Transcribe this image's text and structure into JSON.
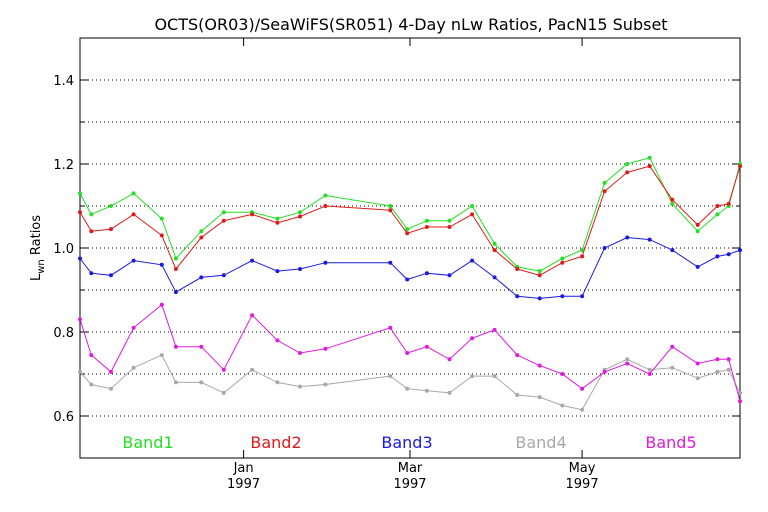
{
  "chart_data": {
    "type": "line",
    "title": "OCTS(OR03)/SeaWiFS(SR051) 4-Day nLw Ratios, PacN15 Subset",
    "ylabel_main": "L",
    "ylabel_sub": "wn",
    "ylabel_rest": " Ratios",
    "ylim": [
      0.5,
      1.5
    ],
    "yticks": [
      "0.6",
      "0.8",
      "1.0",
      "1.2",
      "1.4"
    ],
    "ytick_values": [
      0.6,
      0.8,
      1.0,
      1.2,
      1.4
    ],
    "grid": true,
    "x_range": [
      "1996-11-04",
      "1997-06-26"
    ],
    "xticks": [
      {
        "date": "1997-01-01",
        "month": "Jan",
        "year": "1997"
      },
      {
        "date": "1997-03-01",
        "month": "Mar",
        "year": "1997"
      },
      {
        "date": "1997-05-01",
        "month": "May",
        "year": "1997"
      }
    ],
    "series": [
      {
        "name": "Band1",
        "color": "#22e022",
        "points": [
          [
            "1996-11-04",
            1.13
          ],
          [
            "1996-11-08",
            1.08
          ],
          [
            "1996-11-15",
            1.1
          ],
          [
            "1996-11-23",
            1.13
          ],
          [
            "1996-12-03",
            1.07
          ],
          [
            "1996-12-08",
            0.975
          ],
          [
            "1996-12-17",
            1.04
          ],
          [
            "1996-12-25",
            1.085
          ],
          [
            "1997-01-04",
            1.085
          ],
          [
            "1997-01-13",
            1.07
          ],
          [
            "1997-01-21",
            1.085
          ],
          [
            "1997-01-30",
            1.125
          ],
          [
            "1997-02-22",
            1.1
          ],
          [
            "1997-02-28",
            1.045
          ],
          [
            "1997-03-07",
            1.065
          ],
          [
            "1997-03-15",
            1.065
          ],
          [
            "1997-03-23",
            1.1
          ],
          [
            "1997-03-31",
            1.01
          ],
          [
            "1997-04-08",
            0.955
          ],
          [
            "1997-04-16",
            0.945
          ],
          [
            "1997-04-24",
            0.975
          ],
          [
            "1997-05-01",
            0.995
          ],
          [
            "1997-05-09",
            1.155
          ],
          [
            "1997-05-17",
            1.2
          ],
          [
            "1997-05-25",
            1.215
          ],
          [
            "1997-06-02",
            1.105
          ],
          [
            "1997-06-11",
            1.04
          ],
          [
            "1997-06-18",
            1.08
          ],
          [
            "1997-06-22",
            1.1
          ],
          [
            "1997-06-30",
            1.2
          ]
        ]
      },
      {
        "name": "Band2",
        "color": "#e01a1a",
        "points": [
          [
            "1996-11-04",
            1.085
          ],
          [
            "1996-11-08",
            1.04
          ],
          [
            "1996-11-15",
            1.045
          ],
          [
            "1996-11-23",
            1.08
          ],
          [
            "1996-12-03",
            1.03
          ],
          [
            "1996-12-08",
            0.95
          ],
          [
            "1996-12-17",
            1.025
          ],
          [
            "1996-12-25",
            1.065
          ],
          [
            "1997-01-04",
            1.08
          ],
          [
            "1997-01-13",
            1.06
          ],
          [
            "1997-01-21",
            1.075
          ],
          [
            "1997-01-30",
            1.1
          ],
          [
            "1997-02-22",
            1.09
          ],
          [
            "1997-02-28",
            1.035
          ],
          [
            "1997-03-07",
            1.05
          ],
          [
            "1997-03-15",
            1.05
          ],
          [
            "1997-03-23",
            1.08
          ],
          [
            "1997-03-31",
            0.995
          ],
          [
            "1997-04-08",
            0.95
          ],
          [
            "1997-04-16",
            0.935
          ],
          [
            "1997-04-24",
            0.965
          ],
          [
            "1997-05-01",
            0.98
          ],
          [
            "1997-05-09",
            1.135
          ],
          [
            "1997-05-17",
            1.18
          ],
          [
            "1997-05-25",
            1.195
          ],
          [
            "1997-06-02",
            1.115
          ],
          [
            "1997-06-11",
            1.055
          ],
          [
            "1997-06-18",
            1.1
          ],
          [
            "1997-06-22",
            1.105
          ],
          [
            "1997-06-30",
            1.195
          ]
        ]
      },
      {
        "name": "Band3",
        "color": "#1a1ae0",
        "points": [
          [
            "1996-11-04",
            0.975
          ],
          [
            "1996-11-08",
            0.94
          ],
          [
            "1996-11-15",
            0.935
          ],
          [
            "1996-11-23",
            0.97
          ],
          [
            "1996-12-03",
            0.96
          ],
          [
            "1996-12-08",
            0.895
          ],
          [
            "1996-12-17",
            0.93
          ],
          [
            "1996-12-25",
            0.935
          ],
          [
            "1997-01-04",
            0.97
          ],
          [
            "1997-01-13",
            0.945
          ],
          [
            "1997-01-21",
            0.95
          ],
          [
            "1997-01-30",
            0.965
          ],
          [
            "1997-02-22",
            0.965
          ],
          [
            "1997-02-28",
            0.925
          ],
          [
            "1997-03-07",
            0.94
          ],
          [
            "1997-03-15",
            0.935
          ],
          [
            "1997-03-23",
            0.97
          ],
          [
            "1997-03-31",
            0.93
          ],
          [
            "1997-04-08",
            0.885
          ],
          [
            "1997-04-16",
            0.88
          ],
          [
            "1997-04-24",
            0.885
          ],
          [
            "1997-05-01",
            0.885
          ],
          [
            "1997-05-09",
            1.0
          ],
          [
            "1997-05-17",
            1.025
          ],
          [
            "1997-05-25",
            1.02
          ],
          [
            "1997-06-02",
            0.995
          ],
          [
            "1997-06-11",
            0.955
          ],
          [
            "1997-06-18",
            0.98
          ],
          [
            "1997-06-22",
            0.985
          ],
          [
            "1997-06-30",
            0.995
          ]
        ]
      },
      {
        "name": "Band4",
        "color": "#a8a8a8",
        "points": [
          [
            "1996-11-04",
            0.705
          ],
          [
            "1996-11-08",
            0.675
          ],
          [
            "1996-11-15",
            0.665
          ],
          [
            "1996-11-23",
            0.715
          ],
          [
            "1996-12-03",
            0.745
          ],
          [
            "1996-12-08",
            0.68
          ],
          [
            "1996-12-17",
            0.68
          ],
          [
            "1996-12-25",
            0.655
          ],
          [
            "1997-01-04",
            0.71
          ],
          [
            "1997-01-13",
            0.68
          ],
          [
            "1997-01-21",
            0.67
          ],
          [
            "1997-01-30",
            0.675
          ],
          [
            "1997-02-22",
            0.695
          ],
          [
            "1997-02-28",
            0.665
          ],
          [
            "1997-03-07",
            0.66
          ],
          [
            "1997-03-15",
            0.655
          ],
          [
            "1997-03-23",
            0.695
          ],
          [
            "1997-03-31",
            0.695
          ],
          [
            "1997-04-08",
            0.65
          ],
          [
            "1997-04-16",
            0.645
          ],
          [
            "1997-04-24",
            0.625
          ],
          [
            "1997-05-01",
            0.615
          ],
          [
            "1997-05-09",
            0.71
          ],
          [
            "1997-05-17",
            0.735
          ],
          [
            "1997-05-25",
            0.71
          ],
          [
            "1997-06-02",
            0.715
          ],
          [
            "1997-06-11",
            0.69
          ],
          [
            "1997-06-18",
            0.705
          ],
          [
            "1997-06-22",
            0.71
          ],
          [
            "1997-06-30",
            0.655
          ]
        ]
      },
      {
        "name": "Band5",
        "color": "#e01ae0",
        "points": [
          [
            "1996-11-04",
            0.83
          ],
          [
            "1996-11-08",
            0.745
          ],
          [
            "1996-11-15",
            0.705
          ],
          [
            "1996-11-23",
            0.81
          ],
          [
            "1996-12-03",
            0.865
          ],
          [
            "1996-12-08",
            0.765
          ],
          [
            "1996-12-17",
            0.765
          ],
          [
            "1996-12-25",
            0.71
          ],
          [
            "1997-01-04",
            0.84
          ],
          [
            "1997-01-13",
            0.78
          ],
          [
            "1997-01-21",
            0.75
          ],
          [
            "1997-01-30",
            0.76
          ],
          [
            "1997-02-22",
            0.81
          ],
          [
            "1997-02-28",
            0.75
          ],
          [
            "1997-03-07",
            0.765
          ],
          [
            "1997-03-15",
            0.735
          ],
          [
            "1997-03-23",
            0.785
          ],
          [
            "1997-03-31",
            0.805
          ],
          [
            "1997-04-08",
            0.745
          ],
          [
            "1997-04-16",
            0.72
          ],
          [
            "1997-04-24",
            0.7
          ],
          [
            "1997-05-01",
            0.665
          ],
          [
            "1997-05-09",
            0.705
          ],
          [
            "1997-05-17",
            0.725
          ],
          [
            "1997-05-25",
            0.7
          ],
          [
            "1997-06-02",
            0.765
          ],
          [
            "1997-06-11",
            0.725
          ],
          [
            "1997-06-18",
            0.735
          ],
          [
            "1997-06-22",
            0.735
          ],
          [
            "1997-06-30",
            0.635
          ]
        ]
      }
    ]
  }
}
